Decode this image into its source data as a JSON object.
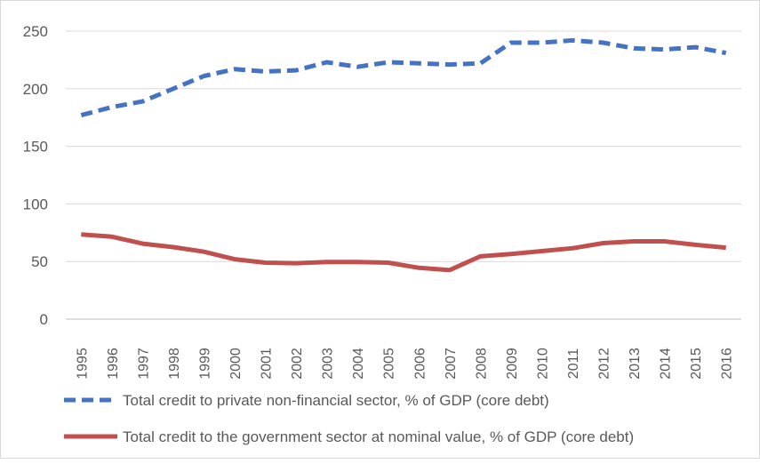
{
  "chart_data": {
    "type": "line",
    "title": "",
    "xlabel": "",
    "ylabel": "",
    "ylim": [
      0,
      250
    ],
    "yticks": [
      0,
      50,
      100,
      150,
      200,
      250
    ],
    "grid": true,
    "legend_position": "bottom",
    "x": [
      "1995",
      "1996",
      "1997",
      "1998",
      "1999",
      "2000",
      "2001",
      "2002",
      "2003",
      "2004",
      "2005",
      "2006",
      "2007",
      "2008",
      "2009",
      "2010",
      "2011",
      "2012",
      "2013",
      "2014",
      "2015",
      "2016"
    ],
    "series": [
      {
        "name": "Total credit to private non-financial sector, % of GDP (core debt)",
        "color": "#4472c4",
        "style": "dashed",
        "values": [
          177,
          184,
          189,
          200,
          211,
          217,
          215,
          216,
          223,
          219,
          223,
          222,
          221,
          222,
          240,
          240,
          242,
          240,
          235,
          234,
          236,
          231
        ]
      },
      {
        "name": "Total credit to the government sector at nominal value, % of GDP (core debt)",
        "color": "#c0504d",
        "style": "solid",
        "values": [
          73.5,
          71.5,
          65.5,
          62.5,
          58.5,
          52,
          49,
          48.5,
          49.5,
          49.5,
          49,
          44.5,
          42.5,
          54.5,
          56.5,
          59,
          61.5,
          66,
          67.5,
          67.5,
          64.5,
          62
        ]
      }
    ]
  }
}
